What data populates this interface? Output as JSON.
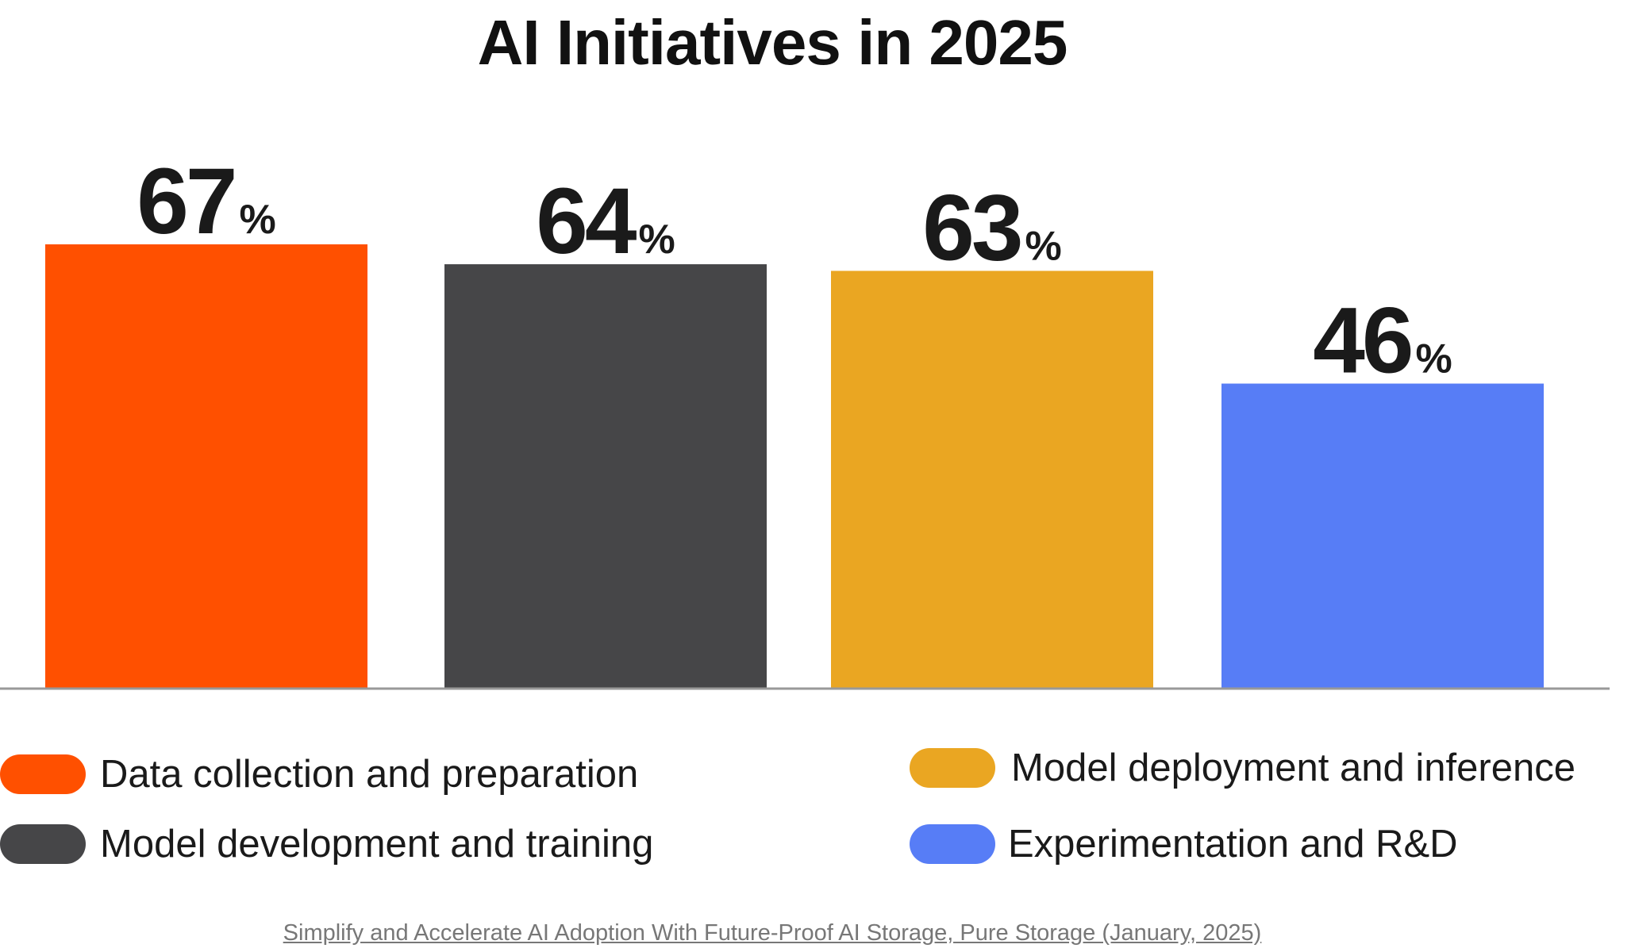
{
  "chart_data": {
    "type": "bar",
    "title": "AI Initiatives in 2025",
    "categories": [
      "Data collection and preparation",
      "Model development and training",
      "Model deployment and inference",
      "Experimentation and R&D"
    ],
    "values": [
      67,
      64,
      63,
      46
    ],
    "value_suffix": "%",
    "colors": [
      "#ff5000",
      "#464648",
      "#eaa622",
      "#577df6"
    ],
    "ylim": [
      0,
      67
    ],
    "xlabel": "",
    "ylabel": "",
    "grid": false,
    "legend": [
      {
        "label": "Data collection and preparation",
        "color": "#ff5000"
      },
      {
        "label": "Model development and training",
        "color": "#464648"
      },
      {
        "label": "Model deployment and inference",
        "color": "#eaa622"
      },
      {
        "label": "Experimentation and R&D",
        "color": "#577df6"
      }
    ],
    "legend_position": "bottom",
    "axis_color": "#999999"
  },
  "source": "Simplify and Accelerate AI Adoption With Future-Proof AI Storage, Pure Storage (January, 2025)"
}
